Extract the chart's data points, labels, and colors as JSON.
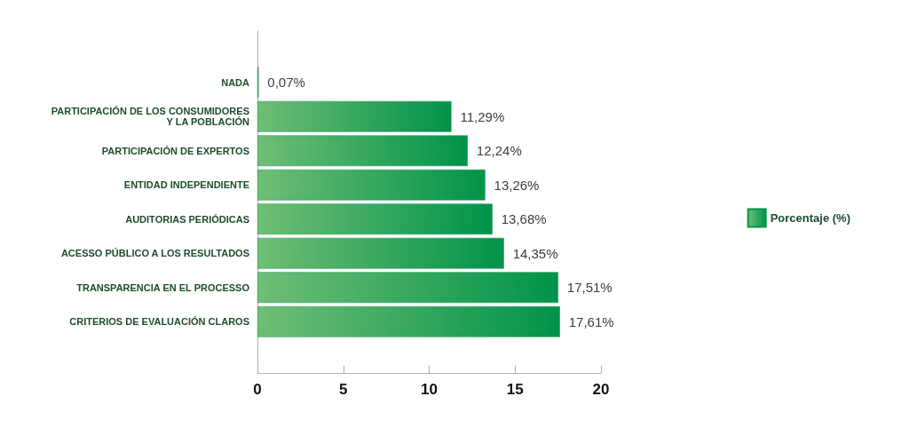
{
  "chart_data": {
    "type": "bar",
    "orientation": "horizontal",
    "categories": [
      "NADA",
      "PARTICIPACIÓN DE LOS CONSUMIDORES\nY LA POBLACIÓN",
      "PARTICIPACIÓN DE EXPERTOS",
      "ENTIDAD INDEPENDIENTE",
      "AUDITORIAS PERIÓDICAS",
      "ACESSO PÚBLICO A LOS RESULTADOS",
      "TRANSPARENCIA EN EL PROCESSO",
      "CRITERIOS DE EVALUACIÓN CLAROS"
    ],
    "series": [
      {
        "name": "Porcentaje (%)",
        "color": "#00934a",
        "values": [
          0.07,
          11.29,
          12.24,
          13.26,
          13.68,
          14.35,
          17.51,
          17.61
        ],
        "value_labels": [
          "0,07%",
          "11,29%",
          "12,24%",
          "13,26%",
          "13,68%",
          "14,35%",
          "17,51%",
          "17,61%"
        ]
      }
    ],
    "xlim": [
      0,
      20
    ],
    "xticks": [
      0,
      5,
      10,
      15,
      20
    ],
    "legend": "right"
  }
}
